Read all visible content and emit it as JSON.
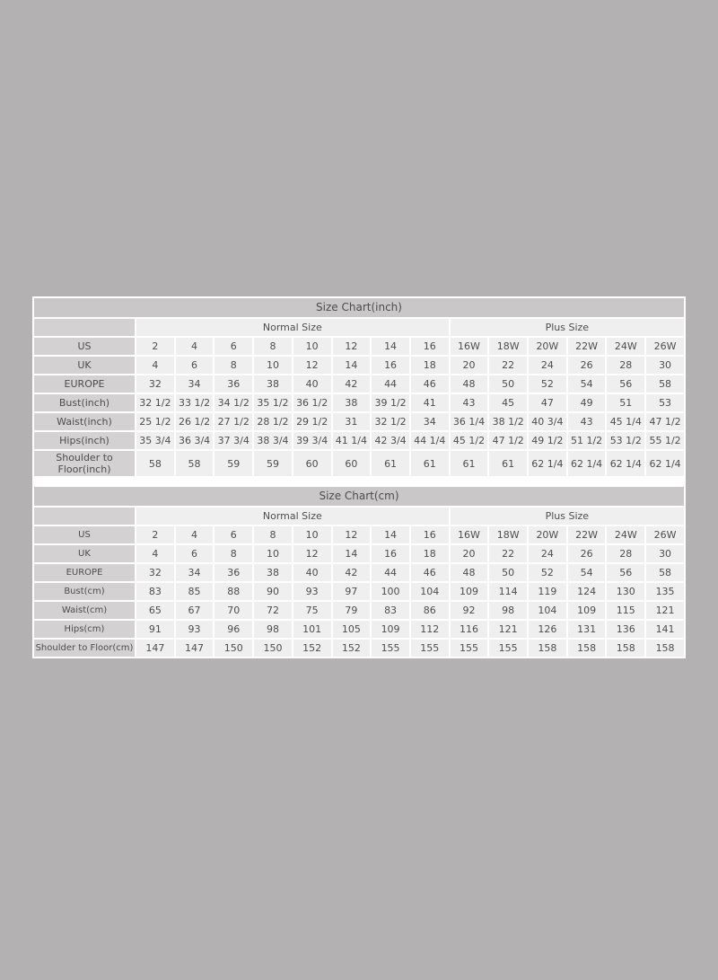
{
  "colors": {
    "page_background": "#b3b1b1",
    "panel_background": "#ffffff",
    "title_bar": "#c9c7c7",
    "label_cell": "#d3d1d1",
    "data_cell": "#f0efef",
    "text": "#4d4d4d"
  },
  "chart_data": [
    {
      "type": "table",
      "title": "Size Chart(inch)",
      "group_headers": [
        {
          "label": "Normal Size",
          "span": 8
        },
        {
          "label": "Plus Size",
          "span": 6
        }
      ],
      "rows": [
        {
          "label": "US",
          "values": [
            "2",
            "4",
            "6",
            "8",
            "10",
            "12",
            "14",
            "16",
            "16W",
            "18W",
            "20W",
            "22W",
            "24W",
            "26W"
          ]
        },
        {
          "label": "UK",
          "values": [
            "4",
            "6",
            "8",
            "10",
            "12",
            "14",
            "16",
            "18",
            "20",
            "22",
            "24",
            "26",
            "28",
            "30"
          ]
        },
        {
          "label": "EUROPE",
          "values": [
            "32",
            "34",
            "36",
            "38",
            "40",
            "42",
            "44",
            "46",
            "48",
            "50",
            "52",
            "54",
            "56",
            "58"
          ]
        },
        {
          "label": "Bust(inch)",
          "values": [
            "32 1/2",
            "33 1/2",
            "34 1/2",
            "35 1/2",
            "36 1/2",
            "38",
            "39 1/2",
            "41",
            "43",
            "45",
            "47",
            "49",
            "51",
            "53"
          ]
        },
        {
          "label": "Waist(inch)",
          "values": [
            "25 1/2",
            "26 1/2",
            "27 1/2",
            "28 1/2",
            "29 1/2",
            "31",
            "32 1/2",
            "34",
            "36 1/4",
            "38 1/2",
            "40 3/4",
            "43",
            "45 1/4",
            "47 1/2"
          ]
        },
        {
          "label": "Hips(inch)",
          "values": [
            "35 3/4",
            "36 3/4",
            "37 3/4",
            "38 3/4",
            "39 3/4",
            "41 1/4",
            "42 3/4",
            "44 1/4",
            "45 1/2",
            "47 1/2",
            "49 1/2",
            "51 1/2",
            "53 1/2",
            "55 1/2"
          ]
        },
        {
          "label": "Shoulder to Floor(inch)",
          "values": [
            "58",
            "58",
            "59",
            "59",
            "60",
            "60",
            "61",
            "61",
            "61",
            "61",
            "62 1/4",
            "62 1/4",
            "62 1/4",
            "62 1/4"
          ]
        }
      ]
    },
    {
      "type": "table",
      "title": "Size Chart(cm)",
      "group_headers": [
        {
          "label": "Normal Size",
          "span": 8
        },
        {
          "label": "Plus Size",
          "span": 6
        }
      ],
      "rows": [
        {
          "label": "US",
          "values": [
            "2",
            "4",
            "6",
            "8",
            "10",
            "12",
            "14",
            "16",
            "16W",
            "18W",
            "20W",
            "22W",
            "24W",
            "26W"
          ]
        },
        {
          "label": "UK",
          "values": [
            "4",
            "6",
            "8",
            "10",
            "12",
            "14",
            "16",
            "18",
            "20",
            "22",
            "24",
            "26",
            "28",
            "30"
          ]
        },
        {
          "label": "EUROPE",
          "values": [
            "32",
            "34",
            "36",
            "38",
            "40",
            "42",
            "44",
            "46",
            "48",
            "50",
            "52",
            "54",
            "56",
            "58"
          ]
        },
        {
          "label": "Bust(cm)",
          "values": [
            "83",
            "85",
            "88",
            "90",
            "93",
            "97",
            "100",
            "104",
            "109",
            "114",
            "119",
            "124",
            "130",
            "135"
          ]
        },
        {
          "label": "Waist(cm)",
          "values": [
            "65",
            "67",
            "70",
            "72",
            "75",
            "79",
            "83",
            "86",
            "92",
            "98",
            "104",
            "109",
            "115",
            "121"
          ]
        },
        {
          "label": "Hips(cm)",
          "values": [
            "91",
            "93",
            "96",
            "98",
            "101",
            "105",
            "109",
            "112",
            "116",
            "121",
            "126",
            "131",
            "136",
            "141"
          ]
        },
        {
          "label": "Shoulder to Floor(cm)",
          "values": [
            "147",
            "147",
            "150",
            "150",
            "152",
            "152",
            "155",
            "155",
            "155",
            "155",
            "158",
            "158",
            "158",
            "158"
          ]
        }
      ]
    }
  ]
}
